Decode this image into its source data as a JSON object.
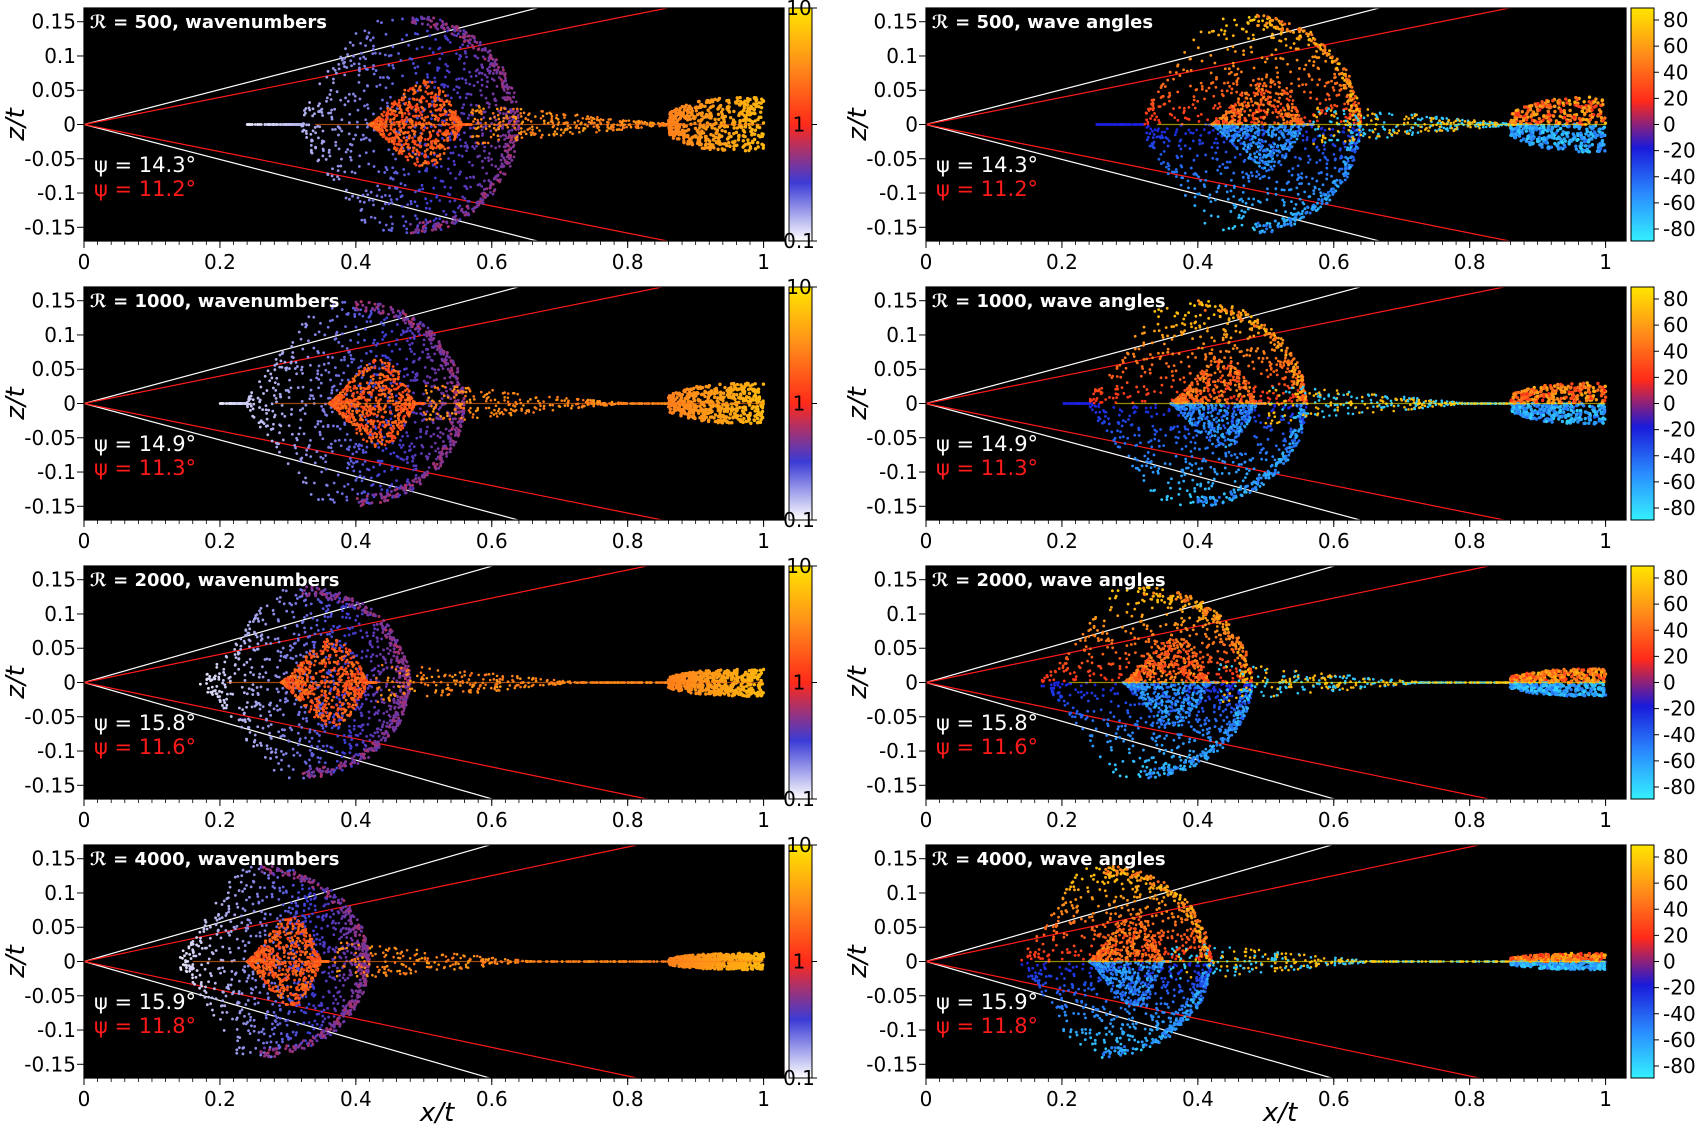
{
  "figure": {
    "x_axis_label": "x/t",
    "y_axis_label": "z/t"
  },
  "chart_data": [
    {
      "type": "scatter",
      "panel": "wavenumbers",
      "title": "ℛ = 500, wavenumbers",
      "R": 500,
      "quantity": "wavenumbers",
      "xlim": [
        0,
        1.03
      ],
      "ylim": [
        -0.17,
        0.17
      ],
      "xticks": [
        "0",
        "0.2",
        "0.4",
        "0.6",
        "0.8",
        "1"
      ],
      "yticks": [
        "0.15",
        "0.1",
        "0.05",
        "0",
        "-0.05",
        "-0.1",
        "-0.15"
      ],
      "colorbar": {
        "scale": "log",
        "range": [
          0.1,
          10
        ],
        "ticks": [
          "10",
          "1",
          "0.1"
        ],
        "colors": [
          "#ffffff",
          "#3b3bd6",
          "#ff2a1a",
          "#ff8c1a",
          "#ffe600"
        ]
      },
      "annotations": {
        "psi_white": "ψ = 14.3°",
        "psi_red": "ψ = 11.2°"
      },
      "wedges": {
        "white_deg": 14.3,
        "red_deg": 11.2
      },
      "structure": {
        "outer_front_x": 0.64,
        "outer_half_width": 0.16,
        "inner_start_x": 0.24,
        "cusp_start_x": 0.42,
        "cusp_end_x": 0.57,
        "tail_end_x": 1.0,
        "head_width": 0.04
      }
    },
    {
      "type": "scatter",
      "panel": "wave angles",
      "title": "ℛ = 500, wave angles",
      "R": 500,
      "quantity": "wave angles",
      "xlim": [
        0,
        1.03
      ],
      "ylim": [
        -0.17,
        0.17
      ],
      "xticks": [
        "0",
        "0.2",
        "0.4",
        "0.6",
        "0.8",
        "1"
      ],
      "yticks": [
        "0.15",
        "0.1",
        "0.05",
        "0",
        "-0.05",
        "-0.1",
        "-0.15"
      ],
      "colorbar": {
        "scale": "linear",
        "range": [
          -90,
          90
        ],
        "ticks": [
          "80",
          "60",
          "40",
          "20",
          "0",
          "-20",
          "-40",
          "-60",
          "-80"
        ],
        "colors": [
          "#35f0ff",
          "#2a8cff",
          "#1a1ad9",
          "#ff2a1a",
          "#ff8c1a",
          "#ffe600"
        ]
      },
      "annotations": {
        "psi_white": "ψ = 14.3°",
        "psi_red": "ψ = 11.2°"
      },
      "wedges": {
        "white_deg": 14.3,
        "red_deg": 11.2
      },
      "structure": {
        "outer_front_x": 0.64,
        "outer_half_width": 0.16,
        "inner_start_x": 0.24,
        "cusp_start_x": 0.42,
        "cusp_end_x": 0.57,
        "tail_end_x": 1.0,
        "head_width": 0.04
      }
    },
    {
      "type": "scatter",
      "panel": "wavenumbers",
      "title": "ℛ = 1000, wavenumbers",
      "R": 1000,
      "quantity": "wavenumbers",
      "xlim": [
        0,
        1.03
      ],
      "ylim": [
        -0.17,
        0.17
      ],
      "xticks": [
        "0",
        "0.2",
        "0.4",
        "0.6",
        "0.8",
        "1"
      ],
      "yticks": [
        "0.15",
        "0.1",
        "0.05",
        "0",
        "-0.05",
        "-0.1",
        "-0.15"
      ],
      "colorbar": {
        "scale": "log",
        "range": [
          0.1,
          10
        ],
        "ticks": [
          "10",
          "1",
          "0.1"
        ],
        "colors": [
          "#ffffff",
          "#3b3bd6",
          "#ff2a1a",
          "#ff8c1a",
          "#ffe600"
        ]
      },
      "annotations": {
        "psi_white": "ψ = 14.9°",
        "psi_red": "ψ = 11.3°"
      },
      "wedges": {
        "white_deg": 14.9,
        "red_deg": 11.3
      },
      "structure": {
        "outer_front_x": 0.56,
        "outer_half_width": 0.15,
        "inner_start_x": 0.2,
        "cusp_start_x": 0.36,
        "cusp_end_x": 0.5,
        "tail_end_x": 1.0,
        "head_width": 0.03
      }
    },
    {
      "type": "scatter",
      "panel": "wave angles",
      "title": "ℛ = 1000, wave angles",
      "R": 1000,
      "quantity": "wave angles",
      "xlim": [
        0,
        1.03
      ],
      "ylim": [
        -0.17,
        0.17
      ],
      "xticks": [
        "0",
        "0.2",
        "0.4",
        "0.6",
        "0.8",
        "1"
      ],
      "yticks": [
        "0.15",
        "0.1",
        "0.05",
        "0",
        "-0.05",
        "-0.1",
        "-0.15"
      ],
      "colorbar": {
        "scale": "linear",
        "range": [
          -90,
          90
        ],
        "ticks": [
          "80",
          "60",
          "40",
          "20",
          "0",
          "-20",
          "-40",
          "-60",
          "-80"
        ],
        "colors": [
          "#35f0ff",
          "#2a8cff",
          "#1a1ad9",
          "#ff2a1a",
          "#ff8c1a",
          "#ffe600"
        ]
      },
      "annotations": {
        "psi_white": "ψ = 14.9°",
        "psi_red": "ψ = 11.3°"
      },
      "wedges": {
        "white_deg": 14.9,
        "red_deg": 11.3
      },
      "structure": {
        "outer_front_x": 0.56,
        "outer_half_width": 0.15,
        "inner_start_x": 0.2,
        "cusp_start_x": 0.36,
        "cusp_end_x": 0.5,
        "tail_end_x": 1.0,
        "head_width": 0.03
      }
    },
    {
      "type": "scatter",
      "panel": "wavenumbers",
      "title": "ℛ = 2000, wavenumbers",
      "R": 2000,
      "quantity": "wavenumbers",
      "xlim": [
        0,
        1.03
      ],
      "ylim": [
        -0.17,
        0.17
      ],
      "xticks": [
        "0",
        "0.2",
        "0.4",
        "0.6",
        "0.8",
        "1"
      ],
      "yticks": [
        "0.15",
        "0.1",
        "0.05",
        "0",
        "-0.05",
        "-0.1",
        "-0.15"
      ],
      "colorbar": {
        "scale": "log",
        "range": [
          0.1,
          10
        ],
        "ticks": [
          "10",
          "1",
          "0.1"
        ],
        "colors": [
          "#ffffff",
          "#3b3bd6",
          "#ff2a1a",
          "#ff8c1a",
          "#ffe600"
        ]
      },
      "annotations": {
        "psi_white": "ψ = 15.8°",
        "psi_red": "ψ = 11.6°"
      },
      "wedges": {
        "white_deg": 15.8,
        "red_deg": 11.6
      },
      "structure": {
        "outer_front_x": 0.48,
        "outer_half_width": 0.14,
        "inner_start_x": 0.17,
        "cusp_start_x": 0.29,
        "cusp_end_x": 0.43,
        "tail_end_x": 1.0,
        "head_width": 0.02
      }
    },
    {
      "type": "scatter",
      "panel": "wave angles",
      "title": "ℛ = 2000, wave angles",
      "R": 2000,
      "quantity": "wave angles",
      "xlim": [
        0,
        1.03
      ],
      "ylim": [
        -0.17,
        0.17
      ],
      "xticks": [
        "0",
        "0.2",
        "0.4",
        "0.6",
        "0.8",
        "1"
      ],
      "yticks": [
        "0.15",
        "0.1",
        "0.05",
        "0",
        "-0.05",
        "-0.1",
        "-0.15"
      ],
      "colorbar": {
        "scale": "linear",
        "range": [
          -90,
          90
        ],
        "ticks": [
          "80",
          "60",
          "40",
          "20",
          "0",
          "-20",
          "-40",
          "-60",
          "-80"
        ],
        "colors": [
          "#35f0ff",
          "#2a8cff",
          "#1a1ad9",
          "#ff2a1a",
          "#ff8c1a",
          "#ffe600"
        ]
      },
      "annotations": {
        "psi_white": "ψ = 15.8°",
        "psi_red": "ψ = 11.6°"
      },
      "wedges": {
        "white_deg": 15.8,
        "red_deg": 11.6
      },
      "structure": {
        "outer_front_x": 0.48,
        "outer_half_width": 0.14,
        "inner_start_x": 0.17,
        "cusp_start_x": 0.29,
        "cusp_end_x": 0.43,
        "tail_end_x": 1.0,
        "head_width": 0.02
      }
    },
    {
      "type": "scatter",
      "panel": "wavenumbers",
      "title": "ℛ = 4000, wavenumbers",
      "R": 4000,
      "quantity": "wavenumbers",
      "xlim": [
        0,
        1.03
      ],
      "ylim": [
        -0.17,
        0.17
      ],
      "xticks": [
        "0",
        "0.2",
        "0.4",
        "0.6",
        "0.8",
        "1"
      ],
      "yticks": [
        "0.15",
        "0.1",
        "0.05",
        "0",
        "-0.05",
        "-0.1",
        "-0.15"
      ],
      "colorbar": {
        "scale": "log",
        "range": [
          0.1,
          10
        ],
        "ticks": [
          "10",
          "1",
          "0.1"
        ],
        "colors": [
          "#ffffff",
          "#3b3bd6",
          "#ff2a1a",
          "#ff8c1a",
          "#ffe600"
        ]
      },
      "annotations": {
        "psi_white": "ψ = 15.9°",
        "psi_red": "ψ = 11.8°"
      },
      "wedges": {
        "white_deg": 15.9,
        "red_deg": 11.8
      },
      "structure": {
        "outer_front_x": 0.42,
        "outer_half_width": 0.14,
        "inner_start_x": 0.14,
        "cusp_start_x": 0.24,
        "cusp_end_x": 0.36,
        "tail_end_x": 1.0,
        "head_width": 0.012
      }
    },
    {
      "type": "scatter",
      "panel": "wave angles",
      "title": "ℛ = 4000, wave angles",
      "R": 4000,
      "quantity": "wave angles",
      "xlim": [
        0,
        1.03
      ],
      "ylim": [
        -0.17,
        0.17
      ],
      "xticks": [
        "0",
        "0.2",
        "0.4",
        "0.6",
        "0.8",
        "1"
      ],
      "yticks": [
        "0.15",
        "0.1",
        "0.05",
        "0",
        "-0.05",
        "-0.1",
        "-0.15"
      ],
      "colorbar": {
        "scale": "linear",
        "range": [
          -90,
          90
        ],
        "ticks": [
          "80",
          "60",
          "40",
          "20",
          "0",
          "-20",
          "-40",
          "-60",
          "-80"
        ],
        "colors": [
          "#35f0ff",
          "#2a8cff",
          "#1a1ad9",
          "#ff2a1a",
          "#ff8c1a",
          "#ffe600"
        ]
      },
      "annotations": {
        "psi_white": "ψ = 15.9°",
        "psi_red": "ψ = 11.8°"
      },
      "wedges": {
        "white_deg": 15.9,
        "red_deg": 11.8
      },
      "structure": {
        "outer_front_x": 0.42,
        "outer_half_width": 0.14,
        "inner_start_x": 0.14,
        "cusp_start_x": 0.24,
        "cusp_end_x": 0.36,
        "tail_end_x": 1.0,
        "head_width": 0.012
      }
    }
  ]
}
